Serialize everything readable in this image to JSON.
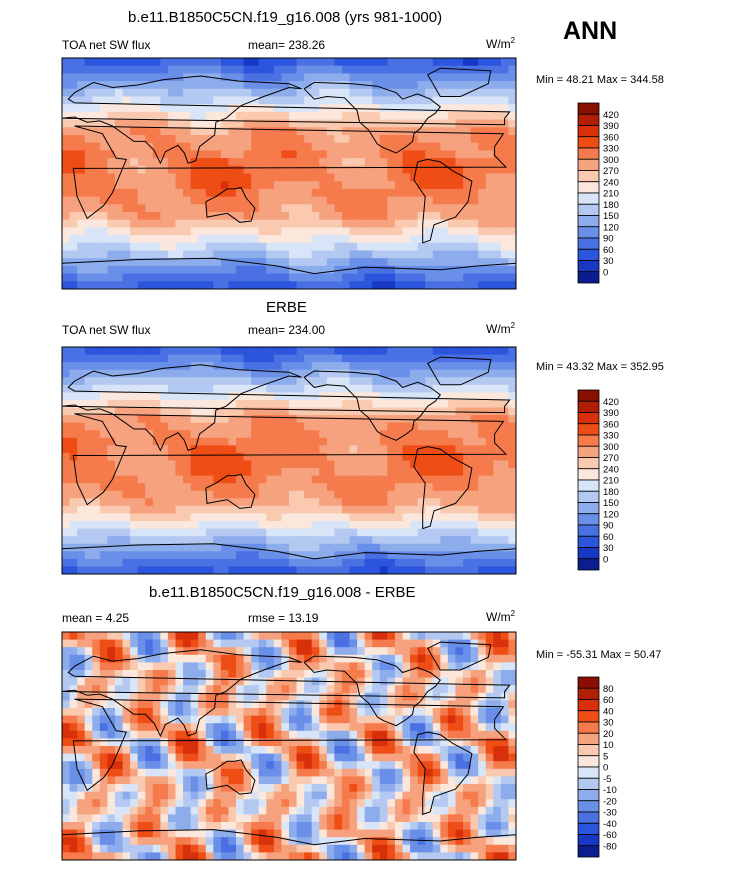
{
  "figure": {
    "season": "ANN"
  },
  "chart_data": [
    {
      "type": "heatmap",
      "title": "b.e11.B1850C5CN.f19_g16.008 (yrs 981-1000)",
      "left_label": "TOA net SW flux",
      "center_label": "mean= 238.26",
      "units": "W/m",
      "units_sup": "2",
      "stats": "Min =  48.21 Max = 344.58",
      "min": 48.21,
      "max": 344.58,
      "mean": 238.26,
      "colorbar_levels": [
        "420",
        "390",
        "360",
        "330",
        "300",
        "270",
        "240",
        "210",
        "180",
        "150",
        "120",
        "90",
        "60",
        "30",
        "0"
      ],
      "colors": [
        "#8b0f00",
        "#b01e04",
        "#d7300b",
        "#ef4d16",
        "#f57a4c",
        "#f7a27f",
        "#f9c9b0",
        "#fbe7dc",
        "#d8e5f8",
        "#b4c9f1",
        "#8dacec",
        "#6a8fe8",
        "#4a71e3",
        "#2b55dc",
        "#1737c4",
        "#0b1e8f"
      ]
    },
    {
      "type": "heatmap",
      "title": "ERBE",
      "left_label": "TOA net SW flux",
      "center_label": "mean= 234.00",
      "units": "W/m",
      "units_sup": "2",
      "stats": "Min =  43.32 Max = 352.95",
      "min": 43.32,
      "max": 352.95,
      "mean": 234.0,
      "colorbar_levels": [
        "420",
        "390",
        "360",
        "330",
        "300",
        "270",
        "240",
        "210",
        "180",
        "150",
        "120",
        "90",
        "60",
        "30",
        "0"
      ],
      "colors": [
        "#8b0f00",
        "#b01e04",
        "#d7300b",
        "#ef4d16",
        "#f57a4c",
        "#f7a27f",
        "#f9c9b0",
        "#fbe7dc",
        "#d8e5f8",
        "#b4c9f1",
        "#8dacec",
        "#6a8fe8",
        "#4a71e3",
        "#2b55dc",
        "#1737c4",
        "#0b1e8f"
      ]
    },
    {
      "type": "heatmap",
      "title": "b.e11.B1850C5CN.f19_g16.008 - ERBE",
      "left_label": "mean =  4.25",
      "center_label": "rmse =  13.19",
      "units": "W/m",
      "units_sup": "2",
      "stats": "Min = -55.31 Max =  50.47",
      "min": -55.31,
      "max": 50.47,
      "mean": 4.25,
      "rmse": 13.19,
      "colorbar_levels": [
        "80",
        "60",
        "40",
        "30",
        "20",
        "10",
        "5",
        "0",
        "-5",
        "-10",
        "-20",
        "-30",
        "-40",
        "-60",
        "-80"
      ],
      "colors": [
        "#8b0f00",
        "#b01e04",
        "#d7300b",
        "#ef4d16",
        "#f57a4c",
        "#f7a27f",
        "#f9c9b0",
        "#fbe7dc",
        "#d8e5f8",
        "#b4c9f1",
        "#8dacec",
        "#6a8fe8",
        "#4a71e3",
        "#2b55dc",
        "#1737c4",
        "#0b1e8f"
      ]
    }
  ]
}
